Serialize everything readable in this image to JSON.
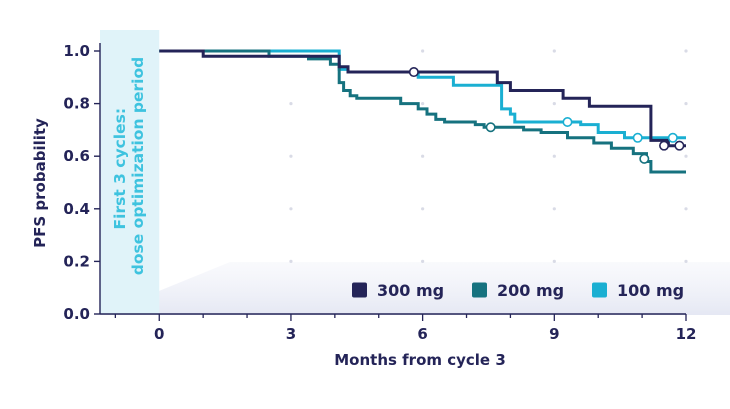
{
  "chart_data": {
    "type": "line",
    "step": true,
    "xlabel": "Months from cycle 3",
    "ylabel": "PFS probability",
    "xlim": [
      -1.35,
      12
    ],
    "ylim": [
      0,
      1.0
    ],
    "xticks": [
      0,
      3,
      6,
      9,
      12
    ],
    "yticks": [
      0.0,
      0.2,
      0.4,
      0.6,
      0.8,
      1.0
    ],
    "xtick_labels": [
      "0",
      "3",
      "6",
      "9",
      "12"
    ],
    "ytick_labels": [
      "0.0",
      "0.2",
      "0.4",
      "0.6",
      "0.8",
      "1.0"
    ],
    "grid": "dotted",
    "legend_position": "bottom-right",
    "annotation": {
      "line1": "First 3 cycles:",
      "line2": "dose optimization period",
      "x_start": -1.35,
      "x_end": 0,
      "color": "#3ec3df"
    },
    "series": [
      {
        "name": "300 mg",
        "color": "#242458",
        "points": [
          [
            0,
            1.0
          ],
          [
            1.0,
            0.98
          ],
          [
            3.3,
            0.98
          ],
          [
            4.1,
            0.94
          ],
          [
            4.3,
            0.92
          ],
          [
            7.5,
            0.92
          ],
          [
            7.7,
            0.88
          ],
          [
            8.0,
            0.85
          ],
          [
            8.9,
            0.85
          ],
          [
            9.2,
            0.82
          ],
          [
            9.7,
            0.82
          ],
          [
            9.8,
            0.79
          ],
          [
            11.1,
            0.79
          ],
          [
            11.2,
            0.66
          ],
          [
            11.6,
            0.64
          ],
          [
            12.0,
            0.64
          ]
        ],
        "censored": [
          [
            5.8,
            0.92
          ],
          [
            11.5,
            0.64
          ],
          [
            11.85,
            0.64
          ]
        ]
      },
      {
        "name": "200 mg",
        "color": "#16727f",
        "points": [
          [
            0,
            1.0
          ],
          [
            0.9,
            1.0
          ],
          [
            2.5,
            0.98
          ],
          [
            3.4,
            0.97
          ],
          [
            3.9,
            0.95
          ],
          [
            4.1,
            0.88
          ],
          [
            4.2,
            0.85
          ],
          [
            4.35,
            0.83
          ],
          [
            4.5,
            0.82
          ],
          [
            5.5,
            0.8
          ],
          [
            5.9,
            0.78
          ],
          [
            6.1,
            0.76
          ],
          [
            6.3,
            0.74
          ],
          [
            6.5,
            0.73
          ],
          [
            7.2,
            0.72
          ],
          [
            7.4,
            0.71
          ],
          [
            8.3,
            0.7
          ],
          [
            8.7,
            0.69
          ],
          [
            9.3,
            0.67
          ],
          [
            9.9,
            0.65
          ],
          [
            10.3,
            0.63
          ],
          [
            10.8,
            0.61
          ],
          [
            11.1,
            0.58
          ],
          [
            11.2,
            0.54
          ],
          [
            12.0,
            0.54
          ]
        ],
        "censored": [
          [
            7.55,
            0.71
          ],
          [
            11.05,
            0.59
          ]
        ]
      },
      {
        "name": "100 mg",
        "color": "#1aafd2",
        "points": [
          [
            0,
            1.0
          ],
          [
            4.0,
            1.0
          ],
          [
            4.1,
            0.93
          ],
          [
            4.3,
            0.92
          ],
          [
            5.8,
            0.92
          ],
          [
            5.9,
            0.9
          ],
          [
            6.6,
            0.9
          ],
          [
            6.7,
            0.87
          ],
          [
            7.6,
            0.87
          ],
          [
            7.8,
            0.78
          ],
          [
            8.0,
            0.76
          ],
          [
            8.1,
            0.73
          ],
          [
            9.0,
            0.73
          ],
          [
            9.1,
            0.73
          ],
          [
            9.6,
            0.72
          ],
          [
            10.0,
            0.69
          ],
          [
            10.6,
            0.67
          ],
          [
            11.4,
            0.67
          ],
          [
            12.0,
            0.67
          ]
        ],
        "censored": [
          [
            9.3,
            0.73
          ],
          [
            10.9,
            0.67
          ],
          [
            11.7,
            0.67
          ]
        ]
      }
    ]
  }
}
